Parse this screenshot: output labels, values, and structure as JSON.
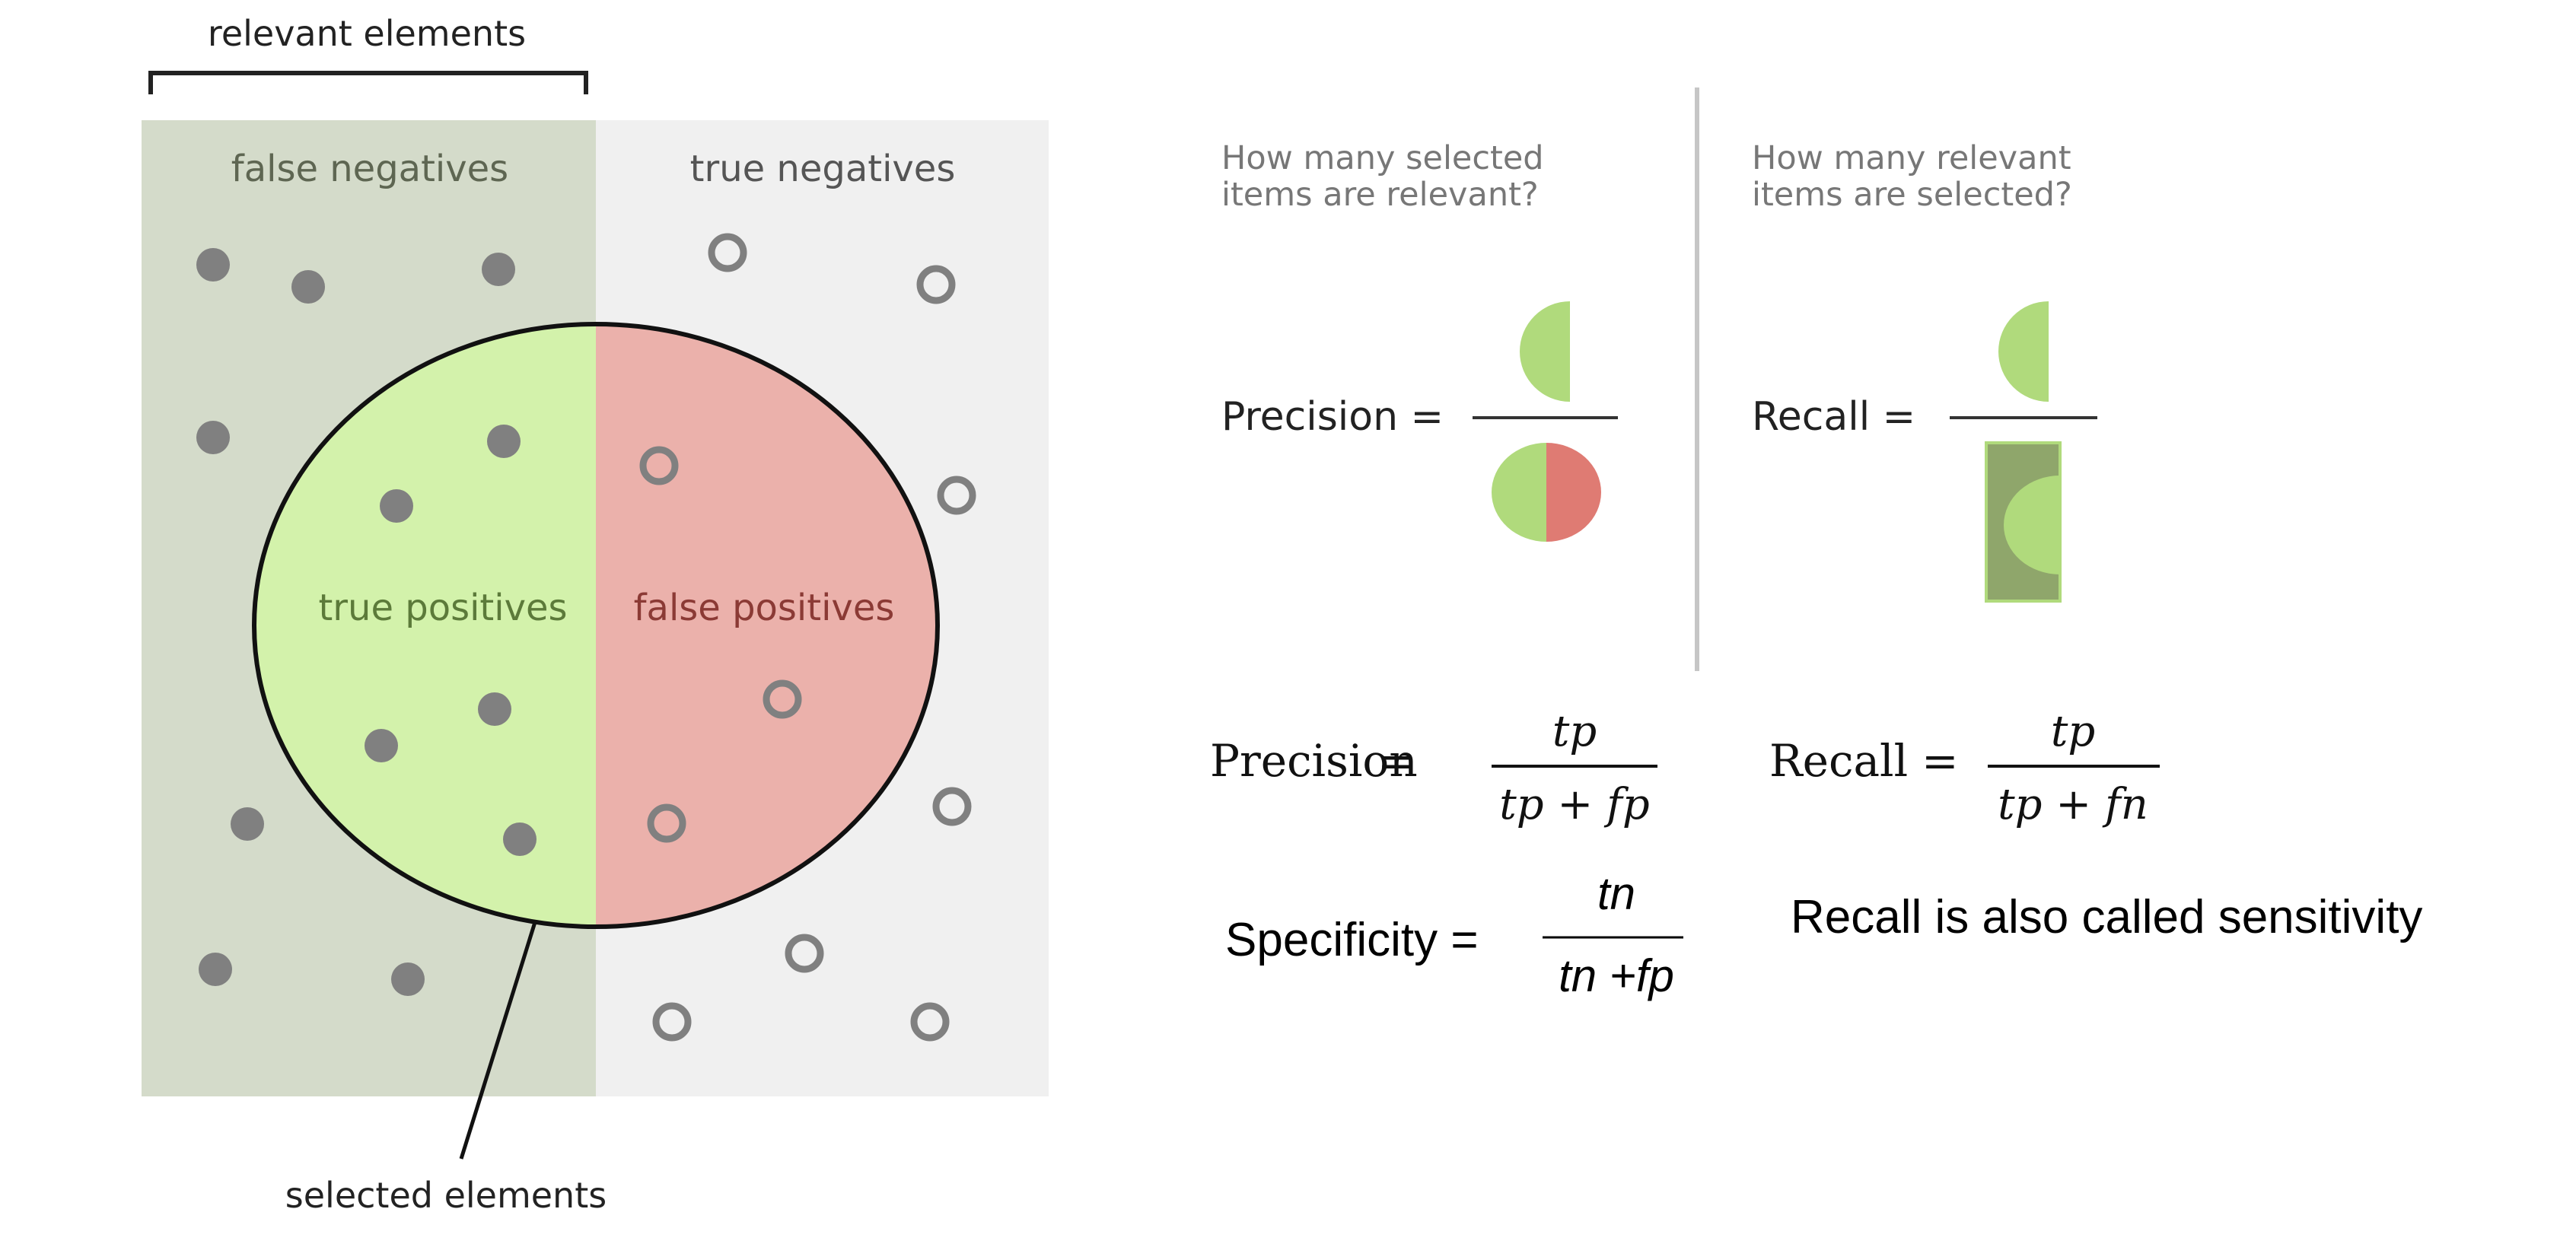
{
  "diagram": {
    "relevant_label": "relevant elements",
    "selected_label": "selected elements",
    "false_negatives_label": "false negatives",
    "true_negatives_label": "true negatives",
    "true_positives_label": "true positives",
    "false_positives_label": "false positives"
  },
  "questions": {
    "precision": [
      "How many selected",
      "items are relevant?"
    ],
    "recall": [
      "How many relevant",
      "items are selected?"
    ]
  },
  "pictorial": {
    "precision_label": "Precision =",
    "recall_label": "Recall ="
  },
  "formulas": {
    "precision": {
      "label": "Precision",
      "eq": "=",
      "numerator": "tp",
      "denominator": "tp + fp"
    },
    "recall": {
      "label": "Recall",
      "eq": "=",
      "numerator": "tp",
      "denominator": "tp + fn"
    },
    "specificity": {
      "label": "Specificity =",
      "numerator": "tn",
      "denominator": "tn +fp"
    }
  },
  "note": "Recall is also called sensitivity",
  "colors": {
    "relevant_bg": "#d4dbca",
    "irrelevant_bg": "#f0f0f0",
    "true_positive_fill": "#d3f2ab",
    "false_positive_fill": "#ebb1ab",
    "dot": "#808080",
    "pictogram_green": "#b0da7c",
    "pictogram_red": "#df7b73",
    "pictogram_dark_green": "#8fa66b"
  }
}
